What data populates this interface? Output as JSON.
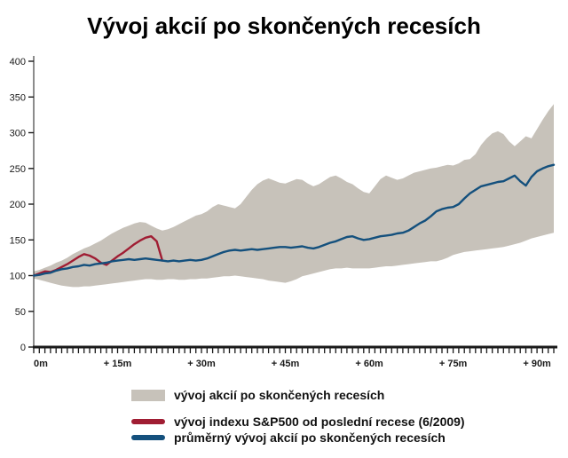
{
  "title": "Vývoj akcií po skončených recesích",
  "colors": {
    "band": "#c7c2ba",
    "sp500": "#a01d33",
    "average": "#14507d",
    "axis": "#1a1a1a"
  },
  "chart_data": {
    "type": "area",
    "title": "Vývoj akcií po skončených recesích",
    "xlabel": "",
    "ylabel": "",
    "x_unit": "months after recession end",
    "xlim": [
      0,
      93
    ],
    "ylim": [
      0,
      400
    ],
    "y_ticks": [
      0,
      50,
      100,
      150,
      200,
      250,
      300,
      350,
      400
    ],
    "x_ticks": [
      "0m",
      "+ 15m",
      "+ 30m",
      "+ 45m",
      "+ 60m",
      "+ 75m",
      "+ 90m"
    ],
    "x_tick_positions": [
      0,
      15,
      30,
      45,
      60,
      75,
      90
    ],
    "grid": false,
    "legend_position": "bottom",
    "band": {
      "name": "vývoj akcií po skončených recesích",
      "color": "#c7c2ba",
      "x_start": 0,
      "x_step": 1,
      "upper": [
        106,
        108,
        111,
        114,
        118,
        121,
        125,
        130,
        134,
        138,
        141,
        145,
        149,
        154,
        159,
        163,
        167,
        170,
        173,
        175,
        174,
        170,
        166,
        163,
        165,
        168,
        172,
        176,
        180,
        184,
        186,
        190,
        196,
        200,
        198,
        196,
        194,
        200,
        210,
        220,
        228,
        233,
        236,
        233,
        230,
        229,
        232,
        235,
        234,
        229,
        225,
        228,
        233,
        238,
        240,
        236,
        231,
        228,
        222,
        217,
        215,
        225,
        235,
        240,
        237,
        234,
        236,
        240,
        244,
        246,
        248,
        250,
        251,
        253,
        255,
        254,
        257,
        262,
        263,
        270,
        283,
        292,
        299,
        302,
        298,
        288,
        281,
        288,
        295,
        292,
        305,
        318,
        330,
        340
      ],
      "lower": [
        96,
        94,
        92,
        90,
        88,
        86,
        85,
        84,
        84,
        85,
        85,
        86,
        87,
        88,
        89,
        90,
        91,
        92,
        93,
        94,
        95,
        95,
        94,
        94,
        95,
        95,
        94,
        94,
        95,
        95,
        96,
        96,
        97,
        98,
        99,
        99,
        100,
        99,
        98,
        97,
        96,
        95,
        93,
        92,
        91,
        90,
        92,
        95,
        99,
        101,
        103,
        105,
        107,
        109,
        110,
        110,
        111,
        110,
        110,
        110,
        110,
        111,
        112,
        113,
        113,
        114,
        115,
        116,
        117,
        118,
        119,
        120,
        120,
        122,
        125,
        129,
        131,
        133,
        134,
        135,
        136,
        137,
        138,
        139,
        140,
        142,
        144,
        146,
        149,
        152,
        154,
        156,
        158,
        160
      ]
    },
    "series": [
      {
        "name": "vývoj indexu S&P500 od poslední recese (6/2009)",
        "color": "#a01d33",
        "x_start": 0,
        "x_step": 1,
        "values": [
          100,
          103,
          106,
          105,
          108,
          112,
          116,
          121,
          126,
          130,
          128,
          124,
          118,
          115,
          121,
          127,
          132,
          138,
          144,
          149,
          153,
          155,
          148,
          121
        ]
      },
      {
        "name": "průměrný vývoj akcií po skončených recesích",
        "color": "#14507d",
        "x_start": 0,
        "x_step": 1,
        "values": [
          100,
          101,
          103,
          104,
          107,
          109,
          110,
          112,
          113,
          115,
          114,
          116,
          117,
          118,
          120,
          121,
          122,
          123,
          122,
          123,
          124,
          123,
          122,
          121,
          120,
          121,
          120,
          121,
          122,
          121,
          122,
          124,
          127,
          130,
          133,
          135,
          136,
          135,
          136,
          137,
          136,
          137,
          138,
          139,
          140,
          140,
          139,
          140,
          141,
          139,
          138,
          140,
          143,
          146,
          148,
          151,
          154,
          155,
          152,
          150,
          151,
          153,
          155,
          156,
          157,
          159,
          160,
          163,
          168,
          173,
          177,
          183,
          190,
          193,
          195,
          196,
          200,
          208,
          215,
          220,
          225,
          227,
          229,
          231,
          232,
          236,
          240,
          232,
          226,
          238,
          246,
          250,
          253,
          255
        ]
      }
    ]
  },
  "legend": {
    "items": [
      {
        "label": "vývoj akcií po skončených recesích",
        "swatch": "area",
        "color": "#c7c2ba"
      },
      {
        "label": "vývoj indexu S&P500 od poslední recese (6/2009)",
        "swatch": "line",
        "color": "#a01d33"
      },
      {
        "label": "průměrný vývoj akcií po skončených recesích",
        "swatch": "line",
        "color": "#14507d"
      }
    ]
  }
}
